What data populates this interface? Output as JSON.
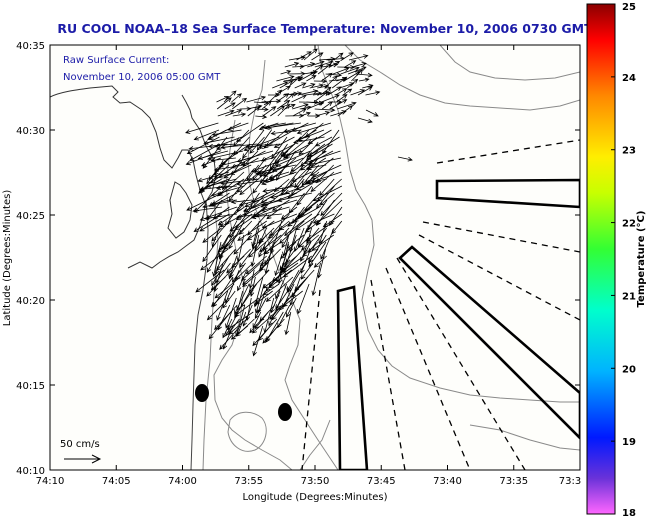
{
  "title": "RU COOL  NOAA–18  Sea Surface Temperature:  November 10, 2006 0730 GMT",
  "map": {
    "annotation_line1": "Raw Surface Current:",
    "annotation_line2": "November 10, 2006 05:00 GMT",
    "xlabel": "Longitude (Degrees:Minutes)",
    "ylabel": "Latitude (Degrees:Minutes)",
    "x_ticks": [
      "74:10",
      "74:05",
      "74:00",
      "73:55",
      "73:50",
      "73:45",
      "73:40",
      "73:35",
      "73:3"
    ],
    "y_ticks": [
      "40:10",
      "40:15",
      "40:20",
      "40:25",
      "40:30",
      "40:35"
    ],
    "scale_label": "50 cm/s",
    "background_color": "#fefefb",
    "contour_color": "#8a8a8a",
    "vector_color": "#000000"
  },
  "colorbar": {
    "label": "Temperature (°C)",
    "ticks": [
      "18",
      "19",
      "20",
      "21",
      "22",
      "23",
      "24",
      "25"
    ],
    "range": [
      18,
      25
    ],
    "colors": [
      "#ff66ff",
      "#6a32d9",
      "#0019ff",
      "#00b3ff",
      "#00ffcc",
      "#33ff33",
      "#c8ff00",
      "#ffee00",
      "#ff8800",
      "#ff0000",
      "#8b0000"
    ]
  }
}
